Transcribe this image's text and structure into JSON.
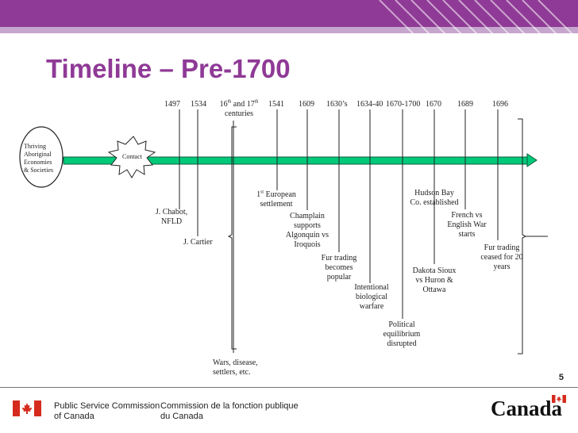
{
  "slide": {
    "title": "Timeline – Pre-1700",
    "page_number": "5"
  },
  "timeline": {
    "start_node": {
      "line1": "Thriving",
      "line2": "Aboriginal",
      "line3": "Economies",
      "line4": "& Societies"
    },
    "contact_label": "Contact",
    "dates": {
      "d1497": "1497",
      "d1534": "1534",
      "d16th": "16",
      "d16th_sup": "th",
      "d16th_and": " and 17",
      "d17th_sup": "th",
      "d16th_line2": "centuries",
      "d1541": "1541",
      "d1609": "1609",
      "d1630s": "1630’s",
      "d1634_40": "1634-40",
      "d1670_1700": "1670-1700",
      "d1670": "1670",
      "d1689": "1689",
      "d1696": "1696"
    },
    "events": {
      "chabot_1": "J. Chabot,",
      "chabot_2": "NFLD",
      "cartier": "J. Cartier",
      "wars_1": "Wars, disease,",
      "wars_2": "settlers, etc.",
      "european_num": "1",
      "european_sup": "st",
      "european_1": " European",
      "european_2": "settlement",
      "champlain_1": "Champlain",
      "champlain_2": "supports",
      "champlain_3": "Algonquin vs",
      "champlain_4": "Iroquois",
      "fur_popular_1": "Fur trading",
      "fur_popular_2": "becomes",
      "fur_popular_3": "popular",
      "warfare_1": "Intentional",
      "warfare_2": "biological",
      "warfare_3": "warfare",
      "political_1": "Political",
      "political_2": "equilibrium",
      "political_3": "disrupted",
      "hudson_1": "Hudson Bay",
      "hudson_2": "Co. established",
      "dakota_1": "Dakota Sioux",
      "dakota_2": "vs Huron &",
      "dakota_3": "Ottawa",
      "french_1": "French vs",
      "french_2": "English War",
      "french_3": "starts",
      "fur_ceased_1": "Fur trading",
      "fur_ceased_2": "ceased for 20",
      "fur_ceased_3": "years"
    }
  },
  "footer": {
    "en_line1": "Public Service Commission",
    "en_line2": "of Canada",
    "fr_line1": "Commission de la fonction publique",
    "fr_line2": "du Canada",
    "wordmark": "Canada"
  },
  "colors": {
    "brand_purple": "#8f3a96",
    "timeline_green": "#00c97a",
    "canada_red": "#d52b1e"
  }
}
